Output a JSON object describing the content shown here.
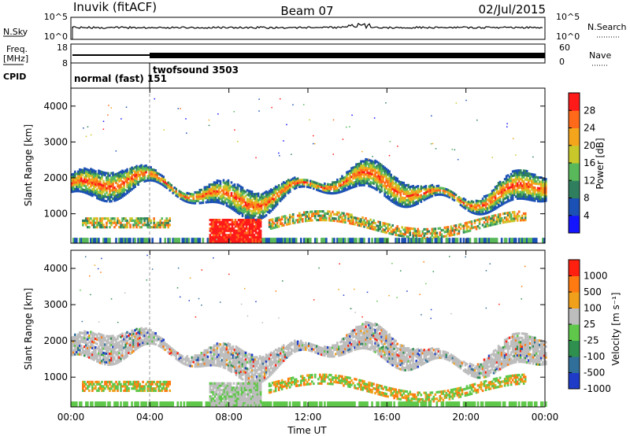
{
  "header": {
    "station": "Inuvik (fitACF)",
    "beam": "Beam 07",
    "date": "02/Jul/2015"
  },
  "chart_data": [
    {
      "type": "line",
      "name": "nsky-nsearch",
      "left_label": "N.Sky",
      "right_label": "N.Search",
      "left_ticks": [
        "10^5",
        "10^0"
      ],
      "right_ticks": [
        "10^5",
        "10^0"
      ]
    },
    {
      "type": "line",
      "name": "freq-nave",
      "left_label_1": "Freq.",
      "left_label_2": "[MHz]",
      "right_label": "Nave",
      "left_ticks": [
        "18",
        "8"
      ],
      "right_ticks": [
        "60",
        "0"
      ]
    },
    {
      "type": "table",
      "name": "cpid",
      "label": "CPID",
      "segments": [
        {
          "text": "normal (fast) 151",
          "start_hour": 0
        },
        {
          "text": "twofsound 3503",
          "start_hour": 4
        }
      ]
    },
    {
      "type": "heatmap",
      "name": "power",
      "ylabel": "Slant Range [km]",
      "ylim": [
        180,
        4500
      ],
      "yticks": [
        "1000",
        "2000",
        "3000",
        "4000"
      ],
      "colorbar_label": "Power [dB]",
      "colorbar_ticks": [
        "4",
        "8",
        "12",
        "16",
        "20",
        "24",
        "28"
      ],
      "colorbar_colors": [
        "#1414ff",
        "#1b50b4",
        "#2f7f5f",
        "#59b85a",
        "#c8c82a",
        "#f5a51c",
        "#ff6a1a",
        "#ff1a1a"
      ]
    },
    {
      "type": "heatmap",
      "name": "velocity",
      "ylabel": "Slant Range [km]",
      "ylim": [
        180,
        4500
      ],
      "yticks": [
        "1000",
        "2000",
        "3000",
        "4000"
      ],
      "colorbar_label": "Velocity [m s⁻¹]",
      "colorbar_ticks": [
        "1000",
        "500",
        "100",
        "25",
        "-25",
        "-100",
        "-500",
        "-1000"
      ],
      "colorbar_colors": [
        "#1e3cc8",
        "#2f6f9a",
        "#2f8f4f",
        "#5fc84a",
        "#bdbdbd",
        "#f0a01a",
        "#ff7a10",
        "#ff2010"
      ]
    }
  ],
  "time_axis": {
    "label": "Time UT",
    "ticks": [
      "00:00",
      "04:00",
      "08:00",
      "12:00",
      "16:00",
      "20:00",
      "00:00"
    ],
    "xlim_hours": [
      0,
      24
    ]
  }
}
